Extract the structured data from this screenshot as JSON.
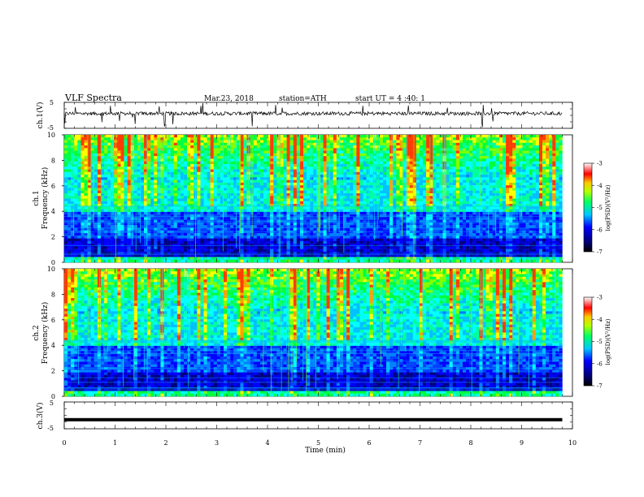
{
  "header": {
    "title": "VLF  Spectra",
    "date": "Mar.23, 2018",
    "station": "station=ATH",
    "start": "start  UT  =   4  :40: 1"
  },
  "chart_data": [
    {
      "type": "line",
      "ylabel": "ch.1(V)",
      "ylim": [
        -5,
        5
      ],
      "ytick_labels": [
        "5",
        "-5"
      ],
      "baseline_value": 0.7,
      "xlim": [
        0,
        10
      ],
      "data_extent_min": 9.8
    },
    {
      "type": "heatmap",
      "channel_label": "ch.1",
      "ylabel": "Frequency  (kHz)",
      "ylim": [
        0,
        10
      ],
      "ytick_labels": [
        "0",
        "2",
        "4",
        "6",
        "8",
        "10"
      ],
      "xlim": [
        0,
        10
      ],
      "colorbar": {
        "label": "log(PSD)(V²/Hz)",
        "range": [
          -7,
          -3
        ],
        "tick_labels": [
          "-3",
          "-4",
          "-5",
          "-6",
          "-7"
        ]
      }
    },
    {
      "type": "heatmap",
      "channel_label": "ch.2",
      "ylabel": "Frequency  (kHz)",
      "ylim": [
        0,
        10
      ],
      "ytick_labels": [
        "0",
        "2",
        "4",
        "6",
        "8",
        "10"
      ],
      "xlim": [
        0,
        10
      ],
      "colorbar": {
        "label": "log(PSD)(V²/Hz)",
        "range": [
          -7,
          -3
        ],
        "tick_labels": [
          "-3",
          "-4",
          "-5",
          "-6",
          "-7"
        ]
      }
    },
    {
      "type": "line",
      "ylabel": "ch.3(V)",
      "ylim": [
        -5,
        5
      ],
      "ytick_labels": [
        "5",
        "-5"
      ],
      "baseline_value": -1.6,
      "xlim": [
        0,
        10
      ]
    }
  ],
  "x_axis": {
    "label": "Time  (min)",
    "range": [
      0,
      10
    ],
    "tick_labels": [
      "0",
      "1",
      "2",
      "3",
      "4",
      "5",
      "6",
      "7",
      "8",
      "9",
      "10"
    ]
  }
}
